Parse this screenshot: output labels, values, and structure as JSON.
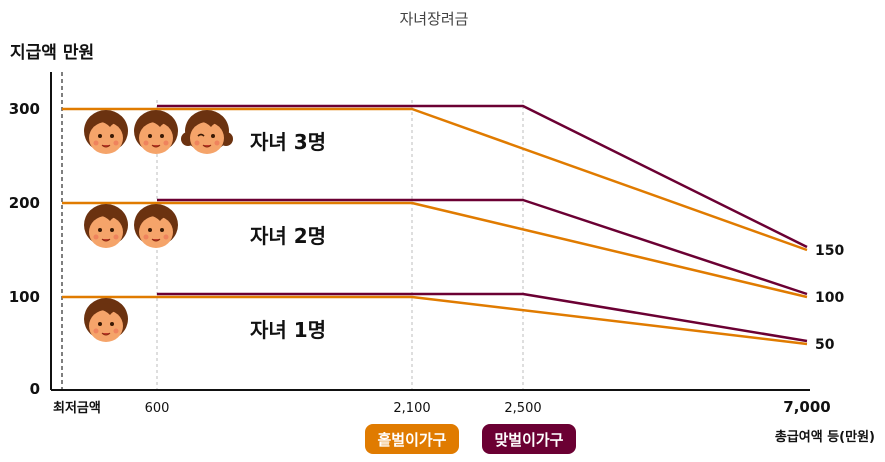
{
  "chart_data": {
    "type": "line",
    "title": "자녀장려금",
    "ylabel": "지급액 만원",
    "xlabel": "총급여액 등(만원)",
    "x_ticks": [
      {
        "value": 0,
        "label": "최저금액"
      },
      {
        "value": 600,
        "label": "600"
      },
      {
        "value": 2100,
        "label": "2,100"
      },
      {
        "value": 2500,
        "label": "2,500"
      },
      {
        "value": 7000,
        "label": "7,000"
      }
    ],
    "y_ticks": [
      0,
      100,
      200,
      300
    ],
    "right_ticks": [
      150,
      100,
      50
    ],
    "ylim": [
      0,
      300
    ],
    "colors": {
      "single": "#e07b00",
      "dual": "#6b0033"
    },
    "legend": {
      "single": "홑벌이가구",
      "dual": "맞벌이가구"
    },
    "groups": [
      {
        "label": "자녀 3명",
        "children": 3,
        "single": {
          "x": [
            0,
            600,
            2100,
            7000
          ],
          "y": [
            300,
            300,
            300,
            150
          ]
        },
        "dual": {
          "x": [
            600,
            2500,
            7000
          ],
          "y": [
            300,
            300,
            150
          ]
        }
      },
      {
        "label": "자녀 2명",
        "children": 2,
        "single": {
          "x": [
            0,
            600,
            2100,
            7000
          ],
          "y": [
            200,
            200,
            200,
            100
          ]
        },
        "dual": {
          "x": [
            600,
            2500,
            7000
          ],
          "y": [
            200,
            200,
            100
          ]
        }
      },
      {
        "label": "자녀 1명",
        "children": 1,
        "single": {
          "x": [
            0,
            600,
            2100,
            7000
          ],
          "y": [
            100,
            100,
            100,
            50
          ]
        },
        "dual": {
          "x": [
            600,
            2500,
            7000
          ],
          "y": [
            100,
            100,
            50
          ]
        }
      }
    ]
  }
}
